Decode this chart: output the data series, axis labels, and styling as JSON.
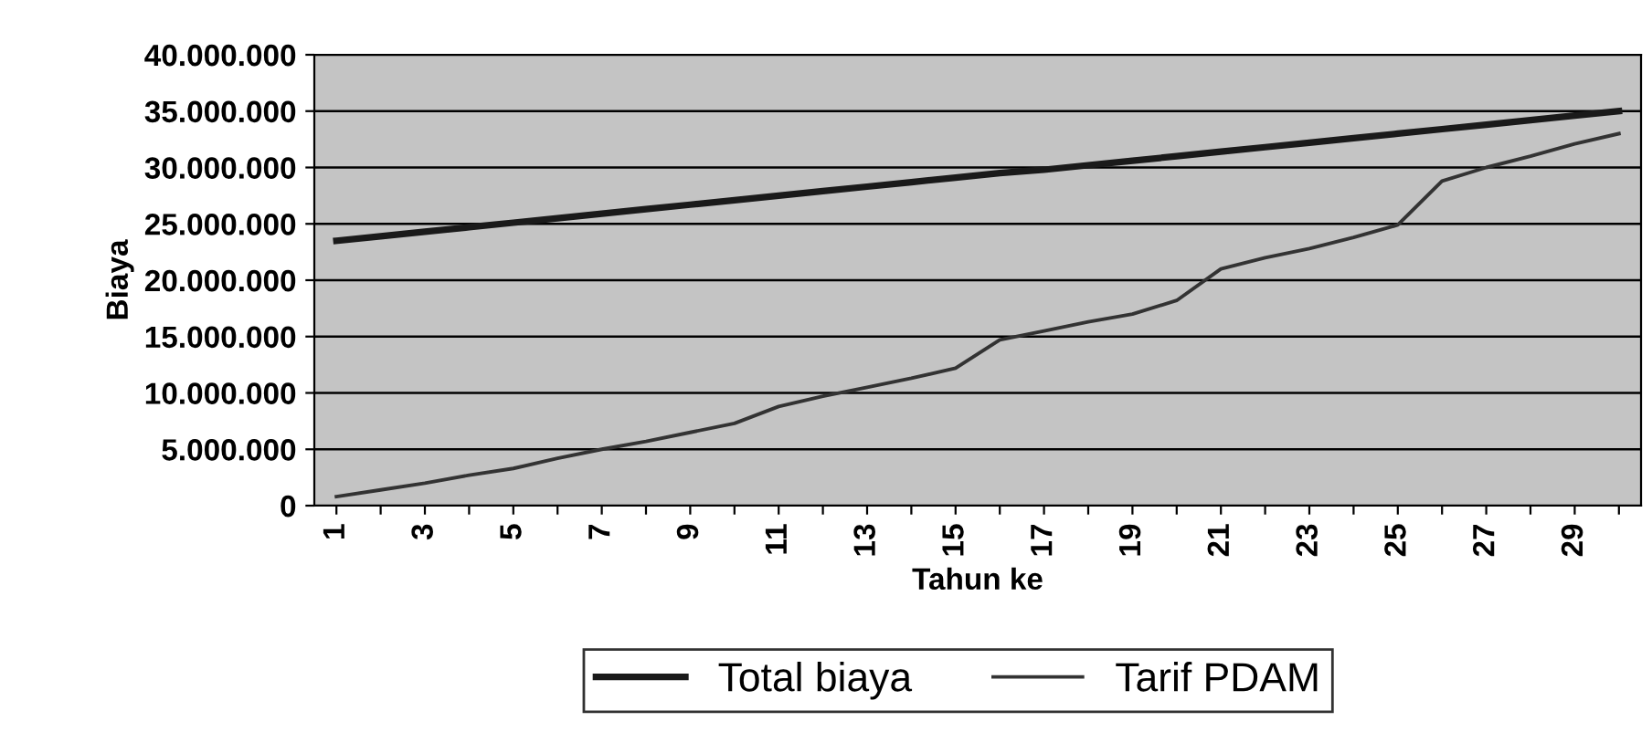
{
  "chart_data": {
    "type": "line",
    "xlabel": "Tahun ke",
    "ylabel": "Biaya",
    "categories": [
      "1",
      null,
      "3",
      null,
      "5",
      null,
      "7",
      null,
      "9",
      null,
      "11",
      null,
      "13",
      null,
      "15",
      null,
      "17",
      null,
      "19",
      null,
      "21",
      null,
      "23",
      null,
      "25",
      null,
      "27",
      null,
      "29",
      null
    ],
    "series": [
      {
        "name": "Total biaya",
        "color": "#1a1a1a",
        "values": [
          23500000,
          23900000,
          24300000,
          24700000,
          25100000,
          25500000,
          25900000,
          26300000,
          26700000,
          27100000,
          27500000,
          27900000,
          28300000,
          28700000,
          29100000,
          29500000,
          29800000,
          30200000,
          30600000,
          31000000,
          31400000,
          31800000,
          32200000,
          32600000,
          33000000,
          33400000,
          33800000,
          34200000,
          34600000,
          35000000
        ]
      },
      {
        "name": "Tarif PDAM",
        "color": "#333333",
        "values": [
          800000,
          1400000,
          2000000,
          2700000,
          3300000,
          4200000,
          5000000,
          5700000,
          6500000,
          7300000,
          8800000,
          9700000,
          10500000,
          11300000,
          12200000,
          14700000,
          15500000,
          16300000,
          17000000,
          18200000,
          21000000,
          22000000,
          22800000,
          23800000,
          24900000,
          28800000,
          30000000,
          31000000,
          32100000,
          33000000
        ]
      }
    ],
    "ylim": [
      0,
      40000000
    ],
    "yticks": [
      {
        "value": 0,
        "label": "0"
      },
      {
        "value": 5000000,
        "label": "5.000.000"
      },
      {
        "value": 10000000,
        "label": "10.000.000"
      },
      {
        "value": 15000000,
        "label": "15.000.000"
      },
      {
        "value": 20000000,
        "label": "20.000.000"
      },
      {
        "value": 25000000,
        "label": "25.000.000"
      },
      {
        "value": 30000000,
        "label": "30.000.000"
      },
      {
        "value": 35000000,
        "label": "35.000.000"
      },
      {
        "value": 40000000,
        "label": "40.000.000"
      }
    ],
    "grid": "y",
    "legend": "bottom",
    "marker": "none",
    "line_style": "solid"
  }
}
